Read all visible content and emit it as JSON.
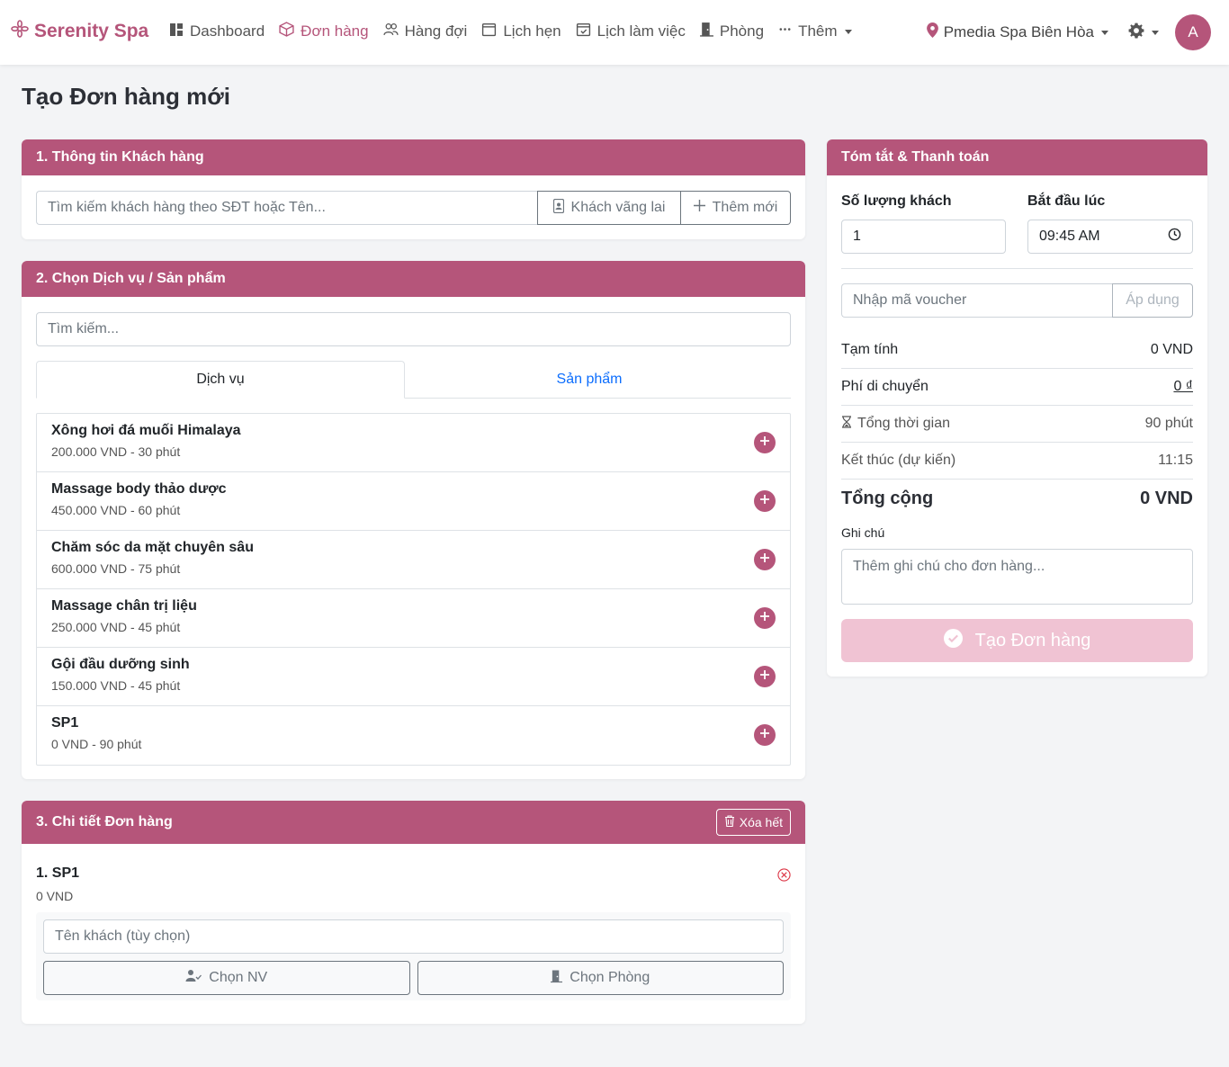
{
  "navbar": {
    "brand": "Serenity Spa",
    "links": [
      {
        "label": "Dashboard"
      },
      {
        "label": "Đơn hàng"
      },
      {
        "label": "Hàng đợi"
      },
      {
        "label": "Lịch hẹn"
      },
      {
        "label": "Lịch làm việc"
      },
      {
        "label": "Phòng"
      },
      {
        "label": "Thêm"
      }
    ],
    "branch": "Pmedia Spa Biên Hòa",
    "avatar_initial": "A",
    "accent_color": "#b5557a"
  },
  "page_title": "Tạo Đơn hàng mới",
  "customer": {
    "header": "1. Thông tin Khách hàng",
    "search_placeholder": "Tìm kiếm khách hàng theo SĐT hoặc Tên...",
    "walkin_label": "Khách vãng lai",
    "add_new_label": "Thêm mới"
  },
  "services": {
    "header": "2. Chọn Dịch vụ / Sản phẩm",
    "search_placeholder": "Tìm kiếm...",
    "tabs": [
      {
        "label": "Dịch vụ"
      },
      {
        "label": "Sản phẩm"
      }
    ],
    "items": [
      {
        "name": "Xông hơi đá muối Himalaya",
        "meta": "200.000 VND - 30 phút"
      },
      {
        "name": "Massage body thảo dược",
        "meta": "450.000 VND - 60 phút"
      },
      {
        "name": "Chăm sóc da mặt chuyên sâu",
        "meta": "600.000 VND - 75 phút"
      },
      {
        "name": "Massage chân trị liệu",
        "meta": "250.000 VND - 45 phút"
      },
      {
        "name": "Gội đầu dưỡng sinh",
        "meta": "150.000 VND - 45 phút"
      },
      {
        "name": "SP1",
        "meta": "0 VND - 90 phút"
      }
    ]
  },
  "order_details": {
    "header": "3. Chi tiết Đơn hàng",
    "clear_label": "Xóa hết",
    "items": [
      {
        "title": "1. SP1",
        "price": "0 VND",
        "guest_placeholder": "Tên khách (tùy chọn)",
        "staff_label": "Chọn NV",
        "room_label": "Chọn Phòng"
      }
    ]
  },
  "summary": {
    "header": "Tóm tắt & Thanh toán",
    "guest_count_label": "Số lượng khách",
    "guest_count_value": "1",
    "start_label": "Bắt đầu lúc",
    "start_value": "09:45 AM",
    "voucher_placeholder": "Nhập mã voucher",
    "voucher_apply": "Áp dụng",
    "subtotal_label": "Tạm tính",
    "subtotal_value": "0 VND",
    "travel_fee_label": "Phí di chuyển",
    "travel_fee_value": "0 ₫",
    "duration_label": "Tổng thời gian",
    "duration_value": "90 phút",
    "end_label": "Kết thúc (dự kiến)",
    "end_value": "11:15",
    "total_label": "Tổng cộng",
    "total_value": "0 VND",
    "note_label": "Ghi chú",
    "note_placeholder": "Thêm ghi chú cho đơn hàng...",
    "submit_label": "Tạo Đơn hàng"
  }
}
